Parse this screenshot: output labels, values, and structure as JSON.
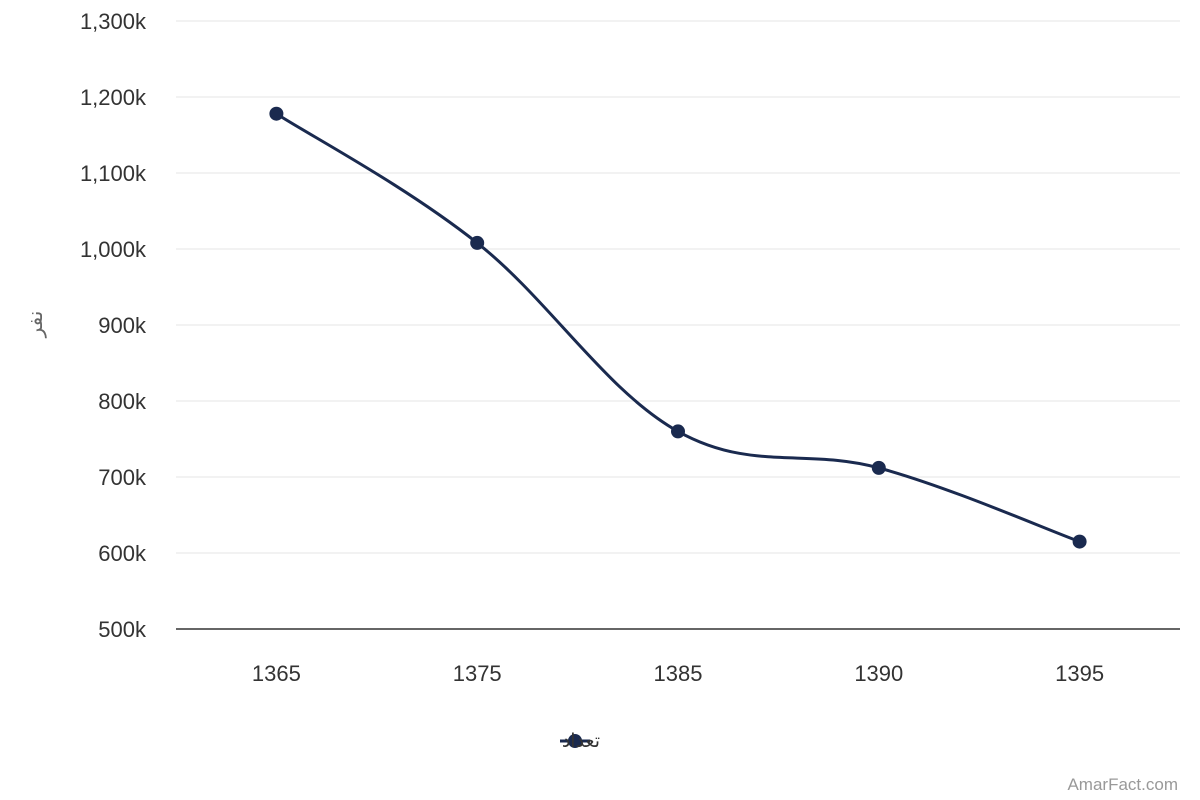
{
  "chart_data": {
    "type": "line",
    "x": [
      "1365",
      "1375",
      "1385",
      "1390",
      "1395"
    ],
    "series": [
      {
        "name": "تعداد",
        "values": [
          1178000,
          1008000,
          760000,
          712000,
          615000
        ],
        "color": "#1a2a4f"
      }
    ],
    "ylabel": "نفر",
    "ylim": [
      500000,
      1300000
    ],
    "yticks": [
      500000,
      600000,
      700000,
      800000,
      900000,
      1000000,
      1100000,
      1200000,
      1300000
    ],
    "ytick_labels": [
      "500k",
      "600k",
      "700k",
      "800k",
      "900k",
      "1,000k",
      "1,100k",
      "1,200k",
      "1,300k"
    ],
    "grid": true,
    "legend_position": "bottom-center",
    "curve": "smooth"
  },
  "credit": "AmarFact.com"
}
